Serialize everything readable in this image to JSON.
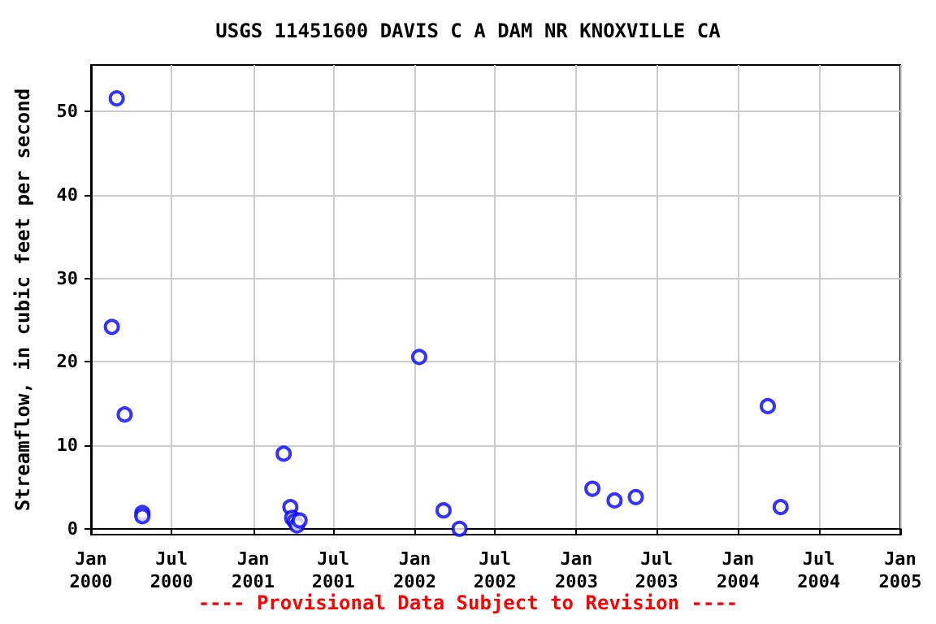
{
  "chart_data": {
    "type": "scatter",
    "title": "USGS 11451600 DAVIS C A DAM NR KNOXVILLE CA",
    "ylabel": "Streamflow, in cubic feet per second",
    "annotations": [
      "---- Provisional Data Subject to Revision ----"
    ],
    "x": [
      "2000-02-17",
      "2000-02-28",
      "2000-03-17",
      "2000-04-26",
      "2000-04-26",
      "2001-03-11",
      "2001-03-26",
      "2001-03-30",
      "2001-04-05",
      "2001-04-10",
      "2001-04-16",
      "2002-01-11",
      "2002-03-07",
      "2002-04-12",
      "2003-02-06",
      "2003-03-28",
      "2003-05-15",
      "2004-03-08",
      "2004-04-06"
    ],
    "series": [
      {
        "color": "#0000ff",
        "values": [
          24.2,
          51.6,
          13.7,
          1.9,
          1.5,
          9.0,
          2.6,
          1.3,
          0.9,
          0.4,
          1.0,
          20.6,
          2.2,
          0,
          4.8,
          3.4,
          3.8,
          14.7,
          2.6
        ]
      }
    ],
    "xlim": [
      "2000-01-01",
      "2005-01-01"
    ],
    "xticks": [
      {
        "value": "2000-01-01",
        "label": "Jan\n2000"
      },
      {
        "value": "2000-07-01",
        "label": "Jul\n2000"
      },
      {
        "value": "2001-01-01",
        "label": "Jan\n2001"
      },
      {
        "value": "2001-07-01",
        "label": "Jul\n2001"
      },
      {
        "value": "2002-01-01",
        "label": "Jan\n2002"
      },
      {
        "value": "2002-07-01",
        "label": "Jul\n2002"
      },
      {
        "value": "2003-01-01",
        "label": "Jan\n2003"
      },
      {
        "value": "2003-07-01",
        "label": "Jul\n2003"
      },
      {
        "value": "2004-01-01",
        "label": "Jan\n2004"
      },
      {
        "value": "2004-07-01",
        "label": "Jul\n2004"
      },
      {
        "value": "2005-01-01",
        "label": "Jan\n2005"
      }
    ],
    "ylim": [
      -0.7,
      55.6
    ],
    "yticks": [
      0,
      10,
      20,
      30,
      40,
      50
    ],
    "grid": true,
    "marker": "circle"
  }
}
